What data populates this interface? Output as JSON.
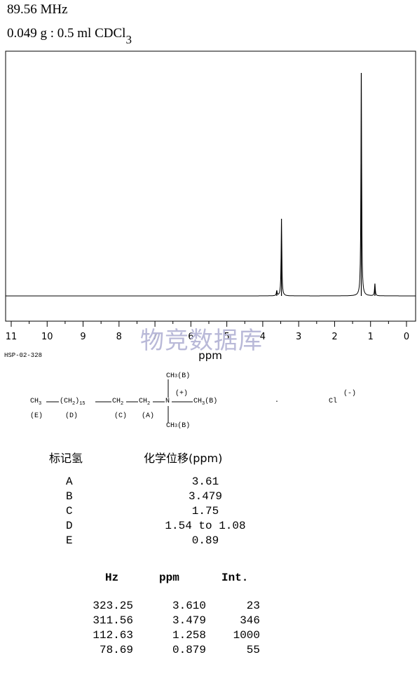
{
  "header": {
    "frequency": "89.56 MHz",
    "sample_prefix": "0.049 g : 0.5 ml CDCl",
    "sample_subscript": "3"
  },
  "spectrum_code": "HSP-02-328",
  "watermark": "物竞数据库",
  "chart_data": {
    "type": "line",
    "xlabel": "ppm",
    "xlim": [
      11,
      0
    ],
    "x_reversed": true,
    "x_ticks": [
      11,
      10,
      9,
      8,
      7,
      6,
      5,
      4,
      3,
      2,
      1,
      0
    ],
    "tick_labels": [
      "11",
      "10",
      "9",
      "8",
      "7",
      "6",
      "5",
      "4",
      "3",
      "2",
      "1",
      "0"
    ],
    "peaks": [
      {
        "ppm": 3.61,
        "intensity": 23
      },
      {
        "ppm": 3.479,
        "intensity": 346
      },
      {
        "ppm": 1.258,
        "intensity": 1000
      },
      {
        "ppm": 0.879,
        "intensity": 55
      }
    ]
  },
  "structure": {
    "ch3_left": "CH",
    "ch3_left_sub": "3",
    "ch2_chain": "(CH",
    "ch2_chain_sub": "2",
    "ch2_chain_close": ")",
    "ch2_chain_count": "15",
    "ch2_c": "CH",
    "ch2_c_sub": "2",
    "ch2_a": "CH",
    "ch2_a_sub": "2",
    "nitrogen": "N",
    "charge_plus": "(+)",
    "methyl_top": "CH",
    "methyl_top_sub": "3",
    "methyl_top_label": "(B)",
    "methyl_right": "CH",
    "methyl_right_sub": "3",
    "methyl_right_label": "(B)",
    "methyl_bottom": "CH",
    "methyl_bottom_sub": "3",
    "methyl_bottom_label": "(B)",
    "label_e": "(E)",
    "label_d": "(D)",
    "label_c": "(C)",
    "label_a": "(A)",
    "dot": ".",
    "chloride": "Cl",
    "charge_minus": "(-)"
  },
  "assignment": {
    "col_label": "标记氢",
    "col_shift": "化学位移(ppm)",
    "rows": [
      {
        "label": "A",
        "shift": "3.61"
      },
      {
        "label": "B",
        "shift": "3.479"
      },
      {
        "label": "C",
        "shift": "1.75"
      },
      {
        "label": "D",
        "shift": "1.54 to 1.08"
      },
      {
        "label": "E",
        "shift": "0.89"
      }
    ]
  },
  "peak_table": {
    "headers": [
      "Hz",
      "ppm",
      "Int."
    ],
    "rows": [
      [
        "323.25",
        "3.610",
        "23"
      ],
      [
        "311.56",
        "3.479",
        "346"
      ],
      [
        "112.63",
        "1.258",
        "1000"
      ],
      [
        "78.69",
        "0.879",
        "55"
      ]
    ]
  }
}
